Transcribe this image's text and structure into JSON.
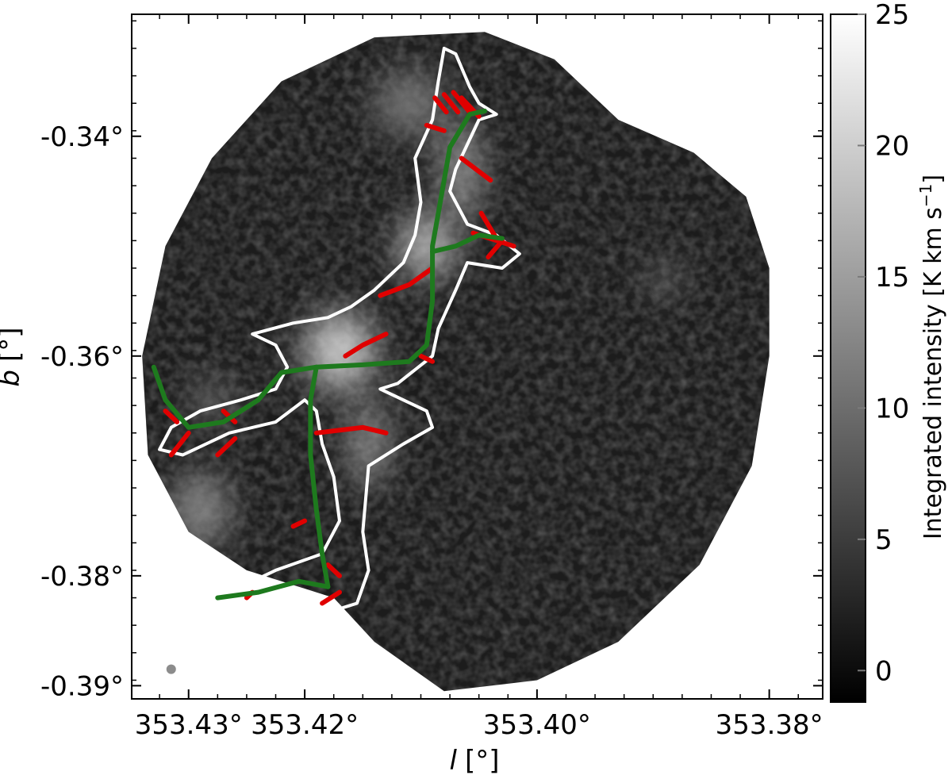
{
  "chart_data": {
    "type": "heatmap",
    "title": "",
    "xlabel": "l [°]",
    "ylabel": "b [°]",
    "x_axis_label_var": "l",
    "x_axis_label_unit": "[°]",
    "y_axis_label_var": "b",
    "y_axis_label_unit": "[°]",
    "xlim": [
      353.4349,
      353.3754
    ],
    "ylim": [
      -0.3912,
      -0.3289
    ],
    "x_ticks": [
      {
        "value": 353.43,
        "label": "353.43°"
      },
      {
        "value": 353.42,
        "label": "353.42°"
      },
      {
        "value": 353.4,
        "label": "353.40°"
      },
      {
        "value": 353.38,
        "label": "353.38°"
      }
    ],
    "y_ticks": [
      {
        "value": -0.34,
        "label": "-0.34°"
      },
      {
        "value": -0.36,
        "label": "-0.36°"
      },
      {
        "value": -0.38,
        "label": "-0.38°"
      },
      {
        "value": -0.39,
        "label": "-0.39°"
      }
    ],
    "colorbar": {
      "label": "Integrated intensity [K km s",
      "label_sup": "−1",
      "label_end": "]",
      "range": [
        -1.2,
        25
      ],
      "ticks": [
        {
          "value": 25,
          "label": "25"
        },
        {
          "value": 20,
          "label": "20"
        },
        {
          "value": 15,
          "label": "15"
        },
        {
          "value": 10,
          "label": "10"
        },
        {
          "value": 5,
          "label": "5"
        },
        {
          "value": 0,
          "label": "0"
        }
      ],
      "colormap": "grayscale"
    },
    "map_outline": [
      [
        353.4045,
        -0.3305
      ],
      [
        353.3985,
        -0.333
      ],
      [
        353.393,
        -0.3385
      ],
      [
        353.3865,
        -0.3415
      ],
      [
        353.382,
        -0.3455
      ],
      [
        353.38,
        -0.352
      ],
      [
        353.38,
        -0.36
      ],
      [
        353.3815,
        -0.37
      ],
      [
        353.386,
        -0.379
      ],
      [
        353.393,
        -0.386
      ],
      [
        353.4,
        -0.3895
      ],
      [
        353.408,
        -0.3905
      ],
      [
        353.414,
        -0.386
      ],
      [
        353.4175,
        -0.382
      ],
      [
        353.425,
        -0.3795
      ],
      [
        353.43,
        -0.376
      ],
      [
        353.4335,
        -0.369
      ],
      [
        353.434,
        -0.36
      ],
      [
        353.432,
        -0.35
      ],
      [
        353.428,
        -0.342
      ],
      [
        353.422,
        -0.335
      ],
      [
        353.414,
        -0.331
      ]
    ],
    "bright_emission": [
      {
        "l": 353.417,
        "b": -0.3595,
        "rl": 0.003,
        "rb": 0.0035,
        "intensity": 22
      },
      {
        "l": 353.4095,
        "b": -0.35,
        "rl": 0.0024,
        "rb": 0.003,
        "intensity": 20
      },
      {
        "l": 353.4065,
        "b": -0.343,
        "rl": 0.0015,
        "rb": 0.0045,
        "intensity": 17
      },
      {
        "l": 353.4145,
        "b": -0.368,
        "rl": 0.0015,
        "rb": 0.004,
        "intensity": 16
      },
      {
        "l": 353.429,
        "b": -0.374,
        "rl": 0.0025,
        "rb": 0.0035,
        "intensity": 14
      },
      {
        "l": 353.411,
        "b": -0.337,
        "rl": 0.003,
        "rb": 0.003,
        "intensity": 12
      },
      {
        "l": 353.389,
        "b": -0.353,
        "rl": 0.0015,
        "rb": 0.0015,
        "intensity": 11
      },
      {
        "l": 353.428,
        "b": -0.364,
        "rl": 0.002,
        "rb": 0.002,
        "intensity": 10
      }
    ],
    "contour": [
      [
        353.4058,
        -0.3355
      ],
      [
        353.405,
        -0.337
      ],
      [
        353.4035,
        -0.338
      ],
      [
        353.405,
        -0.3385
      ],
      [
        353.407,
        -0.343
      ],
      [
        353.4075,
        -0.345
      ],
      [
        353.406,
        -0.348
      ],
      [
        353.4035,
        -0.349
      ],
      [
        353.4015,
        -0.3507
      ],
      [
        353.403,
        -0.352
      ],
      [
        353.406,
        -0.3515
      ],
      [
        353.407,
        -0.354
      ],
      [
        353.4085,
        -0.3575
      ],
      [
        353.409,
        -0.36
      ],
      [
        353.412,
        -0.3625
      ],
      [
        353.4135,
        -0.363
      ],
      [
        353.4095,
        -0.365
      ],
      [
        353.409,
        -0.3665
      ],
      [
        353.4115,
        -0.368
      ],
      [
        353.4145,
        -0.37
      ],
      [
        353.415,
        -0.376
      ],
      [
        353.4145,
        -0.3795
      ],
      [
        353.4155,
        -0.3825
      ],
      [
        353.417,
        -0.383
      ],
      [
        353.418,
        -0.382
      ],
      [
        353.4215,
        -0.381
      ],
      [
        353.4255,
        -0.382
      ],
      [
        353.429,
        -0.3825
      ],
      [
        353.4295,
        -0.382
      ],
      [
        353.4255,
        -0.381
      ],
      [
        353.4225,
        -0.3795
      ],
      [
        353.4185,
        -0.378
      ],
      [
        353.417,
        -0.375
      ],
      [
        353.4175,
        -0.371
      ],
      [
        353.4185,
        -0.368
      ],
      [
        353.419,
        -0.365
      ],
      [
        353.42,
        -0.364
      ],
      [
        353.4225,
        -0.366
      ],
      [
        353.4265,
        -0.367
      ],
      [
        353.4305,
        -0.369
      ],
      [
        353.4325,
        -0.3685
      ],
      [
        353.4315,
        -0.3665
      ],
      [
        353.429,
        -0.365
      ],
      [
        353.4255,
        -0.364
      ],
      [
        353.4225,
        -0.363
      ],
      [
        353.4215,
        -0.361
      ],
      [
        353.4225,
        -0.359
      ],
      [
        353.4245,
        -0.358
      ],
      [
        353.421,
        -0.357
      ],
      [
        353.418,
        -0.3565
      ],
      [
        353.416,
        -0.3555
      ],
      [
        353.414,
        -0.354
      ],
      [
        353.4115,
        -0.3515
      ],
      [
        353.4105,
        -0.349
      ],
      [
        353.41,
        -0.346
      ],
      [
        353.4105,
        -0.342
      ],
      [
        353.409,
        -0.3385
      ],
      [
        353.4085,
        -0.335
      ],
      [
        353.408,
        -0.332
      ],
      [
        353.407,
        -0.3325
      ]
    ],
    "filament_spines": [
      {
        "name": "",
        "color": "#1e7a1e",
        "points": [
          [
            353.4045,
            -0.3377
          ],
          [
            353.4058,
            -0.338
          ],
          [
            353.4075,
            -0.341
          ],
          [
            353.408,
            -0.344
          ],
          [
            353.4085,
            -0.347
          ],
          [
            353.409,
            -0.35
          ],
          [
            353.409,
            -0.355
          ],
          [
            353.4095,
            -0.359
          ],
          [
            353.411,
            -0.3605
          ],
          [
            353.415,
            -0.3608
          ],
          [
            353.419,
            -0.361
          ],
          [
            353.4195,
            -0.364
          ],
          [
            353.4195,
            -0.369
          ],
          [
            353.419,
            -0.374
          ],
          [
            353.4185,
            -0.378
          ],
          [
            353.418,
            -0.381
          ]
        ]
      },
      {
        "name": "",
        "color": "#1e7a1e",
        "points": [
          [
            353.418,
            -0.381
          ],
          [
            353.4205,
            -0.3805
          ],
          [
            353.424,
            -0.3815
          ],
          [
            353.4275,
            -0.382
          ]
        ]
      },
      {
        "name": "",
        "color": "#1e7a1e",
        "points": [
          [
            353.419,
            -0.361
          ],
          [
            353.422,
            -0.3615
          ],
          [
            353.424,
            -0.364
          ],
          [
            353.427,
            -0.366
          ],
          [
            353.43,
            -0.3665
          ],
          [
            353.432,
            -0.364
          ],
          [
            353.433,
            -0.361
          ]
        ]
      },
      {
        "name": "",
        "color": "#1e7a1e",
        "points": [
          [
            353.409,
            -0.3505
          ],
          [
            353.407,
            -0.35
          ],
          [
            353.405,
            -0.349
          ],
          [
            353.403,
            -0.3493
          ]
        ]
      }
    ],
    "filament_branches": [
      {
        "color": "#e00000",
        "points": [
          [
            353.405,
            -0.3382
          ],
          [
            353.4065,
            -0.3365
          ]
        ]
      },
      {
        "color": "#e00000",
        "points": [
          [
            353.4058,
            -0.3378
          ],
          [
            353.4072,
            -0.336
          ]
        ]
      },
      {
        "color": "#e00000",
        "points": [
          [
            353.4068,
            -0.3378
          ],
          [
            353.408,
            -0.3362
          ]
        ]
      },
      {
        "color": "#e00000",
        "points": [
          [
            353.4078,
            -0.3378
          ],
          [
            353.4088,
            -0.3365
          ]
        ]
      },
      {
        "color": "#e00000",
        "points": [
          [
            353.408,
            -0.3395
          ],
          [
            353.4095,
            -0.339
          ]
        ]
      },
      {
        "color": "#e00000",
        "points": [
          [
            353.404,
            -0.344
          ],
          [
            353.4065,
            -0.342
          ]
        ]
      },
      {
        "color": "#e00000",
        "points": [
          [
            353.4035,
            -0.3493
          ],
          [
            353.4048,
            -0.347
          ]
        ]
      },
      {
        "color": "#e00000",
        "points": [
          [
            353.403,
            -0.3495
          ],
          [
            353.4042,
            -0.351
          ]
        ]
      },
      {
        "color": "#e00000",
        "points": [
          [
            353.402,
            -0.35
          ],
          [
            353.4055,
            -0.3488
          ]
        ]
      },
      {
        "color": "#e00000",
        "points": [
          [
            353.409,
            -0.352
          ],
          [
            353.411,
            -0.3535
          ],
          [
            353.4135,
            -0.3545
          ]
        ]
      },
      {
        "color": "#e00000",
        "points": [
          [
            353.413,
            -0.358
          ],
          [
            353.415,
            -0.359
          ],
          [
            353.4165,
            -0.36
          ]
        ]
      },
      {
        "color": "#e00000",
        "points": [
          [
            353.409,
            -0.3605
          ],
          [
            353.41,
            -0.36
          ]
        ]
      },
      {
        "color": "#e00000",
        "points": [
          [
            353.413,
            -0.367
          ],
          [
            353.415,
            -0.3665
          ],
          [
            353.419,
            -0.367
          ]
        ]
      },
      {
        "color": "#e00000",
        "points": [
          [
            353.42,
            -0.375
          ],
          [
            353.421,
            -0.3755
          ]
        ]
      },
      {
        "color": "#e00000",
        "points": [
          [
            353.418,
            -0.379
          ],
          [
            353.417,
            -0.38
          ]
        ]
      },
      {
        "color": "#e00000",
        "points": [
          [
            353.4185,
            -0.3825
          ],
          [
            353.417,
            -0.3815
          ]
        ]
      },
      {
        "color": "#e00000",
        "points": [
          [
            353.4245,
            -0.3815
          ],
          [
            353.425,
            -0.382
          ]
        ]
      },
      {
        "color": "#e00000",
        "points": [
          [
            353.426,
            -0.3675
          ],
          [
            353.4275,
            -0.369
          ]
        ]
      },
      {
        "color": "#e00000",
        "points": [
          [
            353.426,
            -0.366
          ],
          [
            353.427,
            -0.365
          ]
        ]
      },
      {
        "color": "#e00000",
        "points": [
          [
            353.431,
            -0.366
          ],
          [
            353.432,
            -0.365
          ]
        ]
      },
      {
        "color": "#e00000",
        "points": [
          [
            353.43,
            -0.367
          ],
          [
            353.4315,
            -0.369
          ]
        ]
      }
    ],
    "beam_marker": {
      "l": 353.4315,
      "b": -0.3885,
      "color": "#8c8c8c"
    },
    "legend": "none",
    "grid": false
  }
}
